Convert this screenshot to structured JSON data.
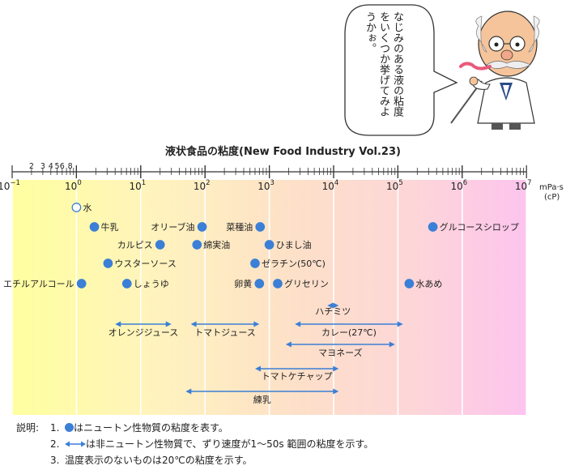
{
  "header": {
    "bubble_text": "なじみのある液の粘度をいくつか挙げてみようかぉ。"
  },
  "chart_data": {
    "type": "scatter",
    "title": "液状食品の粘度(New Food Industry Vol.23)",
    "x_unit": "mPa·s\n(cP)",
    "x_scale": "log",
    "x_range": [
      0.1,
      10000000
    ],
    "decade_ticks": [
      {
        "base": "10",
        "exp": "−1"
      },
      {
        "base": "10",
        "exp": "0"
      },
      {
        "base": "10",
        "exp": "1"
      },
      {
        "base": "10",
        "exp": "2"
      },
      {
        "base": "10",
        "exp": "3"
      },
      {
        "base": "10",
        "exp": "4"
      },
      {
        "base": "10",
        "exp": "5"
      },
      {
        "base": "10",
        "exp": "6"
      },
      {
        "base": "10",
        "exp": "7"
      }
    ],
    "minor_labels": [
      "2",
      "3",
      "4",
      "5",
      "6",
      "8"
    ],
    "newtonian": [
      {
        "name": "水",
        "value": 1.0,
        "open": true,
        "label_side": "right"
      },
      {
        "name": "牛乳",
        "value": 1.9,
        "label_side": "right"
      },
      {
        "name": "オリーブ油",
        "value": 90,
        "label_side": "left"
      },
      {
        "name": "菜種油",
        "value": 720,
        "label_side": "left"
      },
      {
        "name": "グルコースシロップ",
        "value": 350000,
        "label_side": "right"
      },
      {
        "name": "カルピス",
        "value": 20,
        "label_side": "left"
      },
      {
        "name": "綿実油",
        "value": 75,
        "label_side": "right"
      },
      {
        "name": "ひまし油",
        "value": 1000,
        "label_side": "right"
      },
      {
        "name": "ウスターソース",
        "value": 3.1,
        "label_side": "right"
      },
      {
        "name": "ゼラチン(50℃)",
        "value": 600,
        "label_side": "right"
      },
      {
        "name": "エチルアルコール",
        "value": 1.2,
        "label_side": "left"
      },
      {
        "name": "しょうゆ",
        "value": 6.1,
        "label_side": "right"
      },
      {
        "name": "卵黄",
        "value": 700,
        "label_side": "left"
      },
      {
        "name": "グリセリン",
        "value": 1350,
        "label_side": "right"
      },
      {
        "name": "水あめ",
        "value": 150000,
        "label_side": "right"
      }
    ],
    "non_newtonian": [
      {
        "name": "ハチミツ",
        "low": 8000,
        "high": 12000,
        "label_pos": "above"
      },
      {
        "name": "オレンジジュース",
        "low": 4,
        "high": 30,
        "label_pos": "below"
      },
      {
        "name": "トマトジュース",
        "low": 60,
        "high": 700,
        "label_pos": "below"
      },
      {
        "name": "カレー(27℃)",
        "low": 2500,
        "high": 120000,
        "label_pos": "below"
      },
      {
        "name": "マヨネーズ",
        "low": 1800,
        "high": 90000,
        "label_pos": "below"
      },
      {
        "name": "トマトケチャップ",
        "low": 600,
        "high": 12000,
        "label_pos": "below"
      },
      {
        "name": "練乳",
        "low": 50,
        "high": 12000,
        "label_pos": "below"
      }
    ],
    "colors": {
      "gradient": [
        "#ffffa0",
        "#fff2bf",
        "#fde0c8",
        "#fdd6d8",
        "#fdc4ee"
      ],
      "dot": "#3b7fd6",
      "arrow": "#3b7fd6",
      "grid": "#ffffff"
    }
  },
  "notes": {
    "heading": "説明:",
    "items": [
      {
        "num": "1.",
        "text": "はニュートン性物質の粘度を表す。",
        "icon": "dot"
      },
      {
        "num": "2.",
        "text": "は非ニュートン性物質で、ずり速度が1〜50s 範囲の粘度を示す。",
        "icon": "double-arrow"
      },
      {
        "num": "3.",
        "text": "温度表示のないものは20℃の粘度を示す。",
        "icon": ""
      }
    ]
  }
}
